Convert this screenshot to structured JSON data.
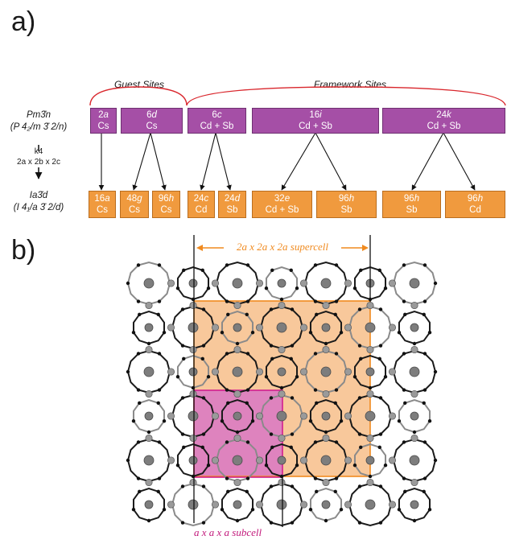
{
  "panels": {
    "a": "a)",
    "b": "b)"
  },
  "brackets": {
    "guest": "Guest Sites",
    "framework": "Framework Sites"
  },
  "parent_group": {
    "symbol": "Pm3̄n",
    "full": "(P 4₂/m 3̄ 2/n)"
  },
  "transform": {
    "index": "k4",
    "cell": "2a x 2b x 2c"
  },
  "child_group": {
    "symbol": "Ia3̄d",
    "full": "(I 4₁/a 3̄ 2/d)"
  },
  "parent_sites": [
    {
      "wyckoff_num": "2",
      "wyckoff_letter": "a",
      "atoms": "Cs"
    },
    {
      "wyckoff_num": "6",
      "wyckoff_letter": "d",
      "atoms": "Cs"
    },
    {
      "wyckoff_num": "6",
      "wyckoff_letter": "c",
      "atoms": "Cd + Sb"
    },
    {
      "wyckoff_num": "16",
      "wyckoff_letter": "i",
      "atoms": "Cd + Sb"
    },
    {
      "wyckoff_num": "24",
      "wyckoff_letter": "k",
      "atoms": "Cd + Sb"
    }
  ],
  "child_sites": [
    {
      "wyckoff_num": "16",
      "wyckoff_letter": "a",
      "atoms": "Cs"
    },
    {
      "wyckoff_num": "48",
      "wyckoff_letter": "g",
      "atoms": "Cs"
    },
    {
      "wyckoff_num": "96",
      "wyckoff_letter": "h",
      "atoms": "Cs"
    },
    {
      "wyckoff_num": "24",
      "wyckoff_letter": "c",
      "atoms": "Cd"
    },
    {
      "wyckoff_num": "24",
      "wyckoff_letter": "d",
      "atoms": "Sb"
    },
    {
      "wyckoff_num": "32",
      "wyckoff_letter": "e",
      "atoms": "Cd + Sb"
    },
    {
      "wyckoff_num": "96",
      "wyckoff_letter": "h",
      "atoms": "Sb"
    },
    {
      "wyckoff_num": "96",
      "wyckoff_letter": "h",
      "atoms": "Sb"
    },
    {
      "wyckoff_num": "96",
      "wyckoff_letter": "h",
      "atoms": "Cd"
    }
  ],
  "supercell_label": "2a x 2a x 2a supercell",
  "subcell_label": "a x a x a subcell",
  "colors": {
    "parent_box": "#a54fa6",
    "child_box": "#f09a3e",
    "bracket": "#d9262c",
    "supercell": "#f5b67a",
    "subcell": "#d977c4"
  }
}
